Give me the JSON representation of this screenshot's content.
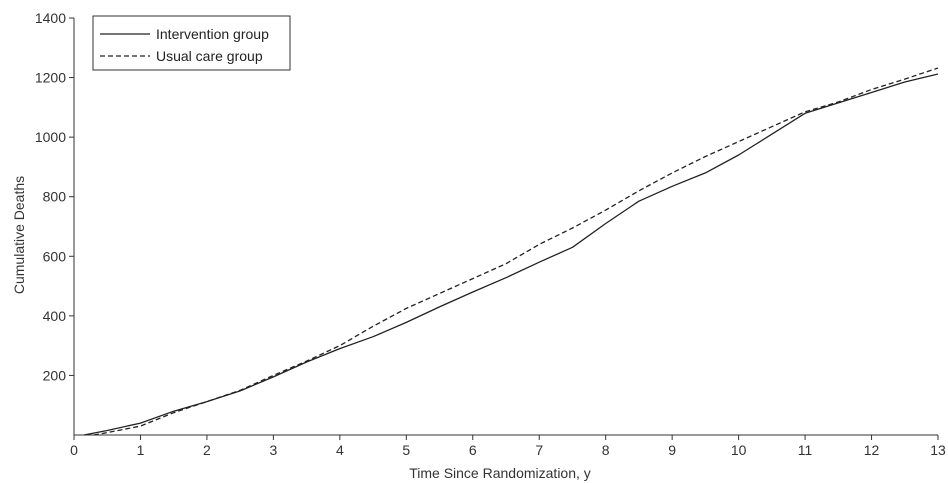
{
  "chart_data": {
    "type": "line",
    "title": "",
    "xlabel": "Time Since Randomization, y",
    "ylabel": "Cumulative Deaths",
    "xlim": [
      0,
      13
    ],
    "ylim": [
      0,
      1400
    ],
    "xticks": [
      0,
      1,
      2,
      3,
      4,
      5,
      6,
      7,
      8,
      9,
      10,
      11,
      12,
      13
    ],
    "yticks": [
      200,
      400,
      600,
      800,
      1000,
      1200,
      1400
    ],
    "x_tick_labels": [
      "0",
      "1",
      "2",
      "3",
      "4",
      "5",
      "6",
      "7",
      "8",
      "9",
      "10",
      "11",
      "12",
      "13"
    ],
    "y_tick_labels": [
      "200",
      "400",
      "600",
      "800",
      "1000",
      "1200",
      "1400"
    ],
    "grid": false,
    "legend_position": "top-left",
    "series": [
      {
        "name": "Intervention group",
        "line_style": "solid",
        "color": "#222222",
        "x": [
          0.15,
          0.5,
          1,
          1.5,
          2,
          2.5,
          3,
          3.5,
          4,
          4.5,
          5,
          5.5,
          6,
          6.5,
          7,
          7.5,
          8,
          8.5,
          9,
          9.5,
          10,
          10.5,
          11,
          11.5,
          12,
          12.5,
          13
        ],
        "y": [
          0,
          15,
          40,
          80,
          112,
          148,
          195,
          245,
          290,
          330,
          378,
          430,
          480,
          528,
          580,
          630,
          710,
          785,
          835,
          880,
          940,
          1010,
          1080,
          1115,
          1150,
          1185,
          1212
        ]
      },
      {
        "name": "Usual care group",
        "line_style": "dashed",
        "color": "#222222",
        "x": [
          0.3,
          0.5,
          1,
          1.5,
          2,
          2.5,
          3,
          3.5,
          4,
          4.5,
          5,
          5.5,
          6,
          6.5,
          7,
          7.5,
          8,
          8.5,
          9,
          9.5,
          10,
          10.5,
          11,
          11.5,
          12,
          12.5,
          13
        ],
        "y": [
          0,
          8,
          30,
          75,
          112,
          150,
          200,
          248,
          300,
          365,
          425,
          475,
          525,
          575,
          640,
          695,
          755,
          820,
          880,
          935,
          985,
          1035,
          1085,
          1118,
          1160,
          1195,
          1232
        ]
      }
    ]
  }
}
